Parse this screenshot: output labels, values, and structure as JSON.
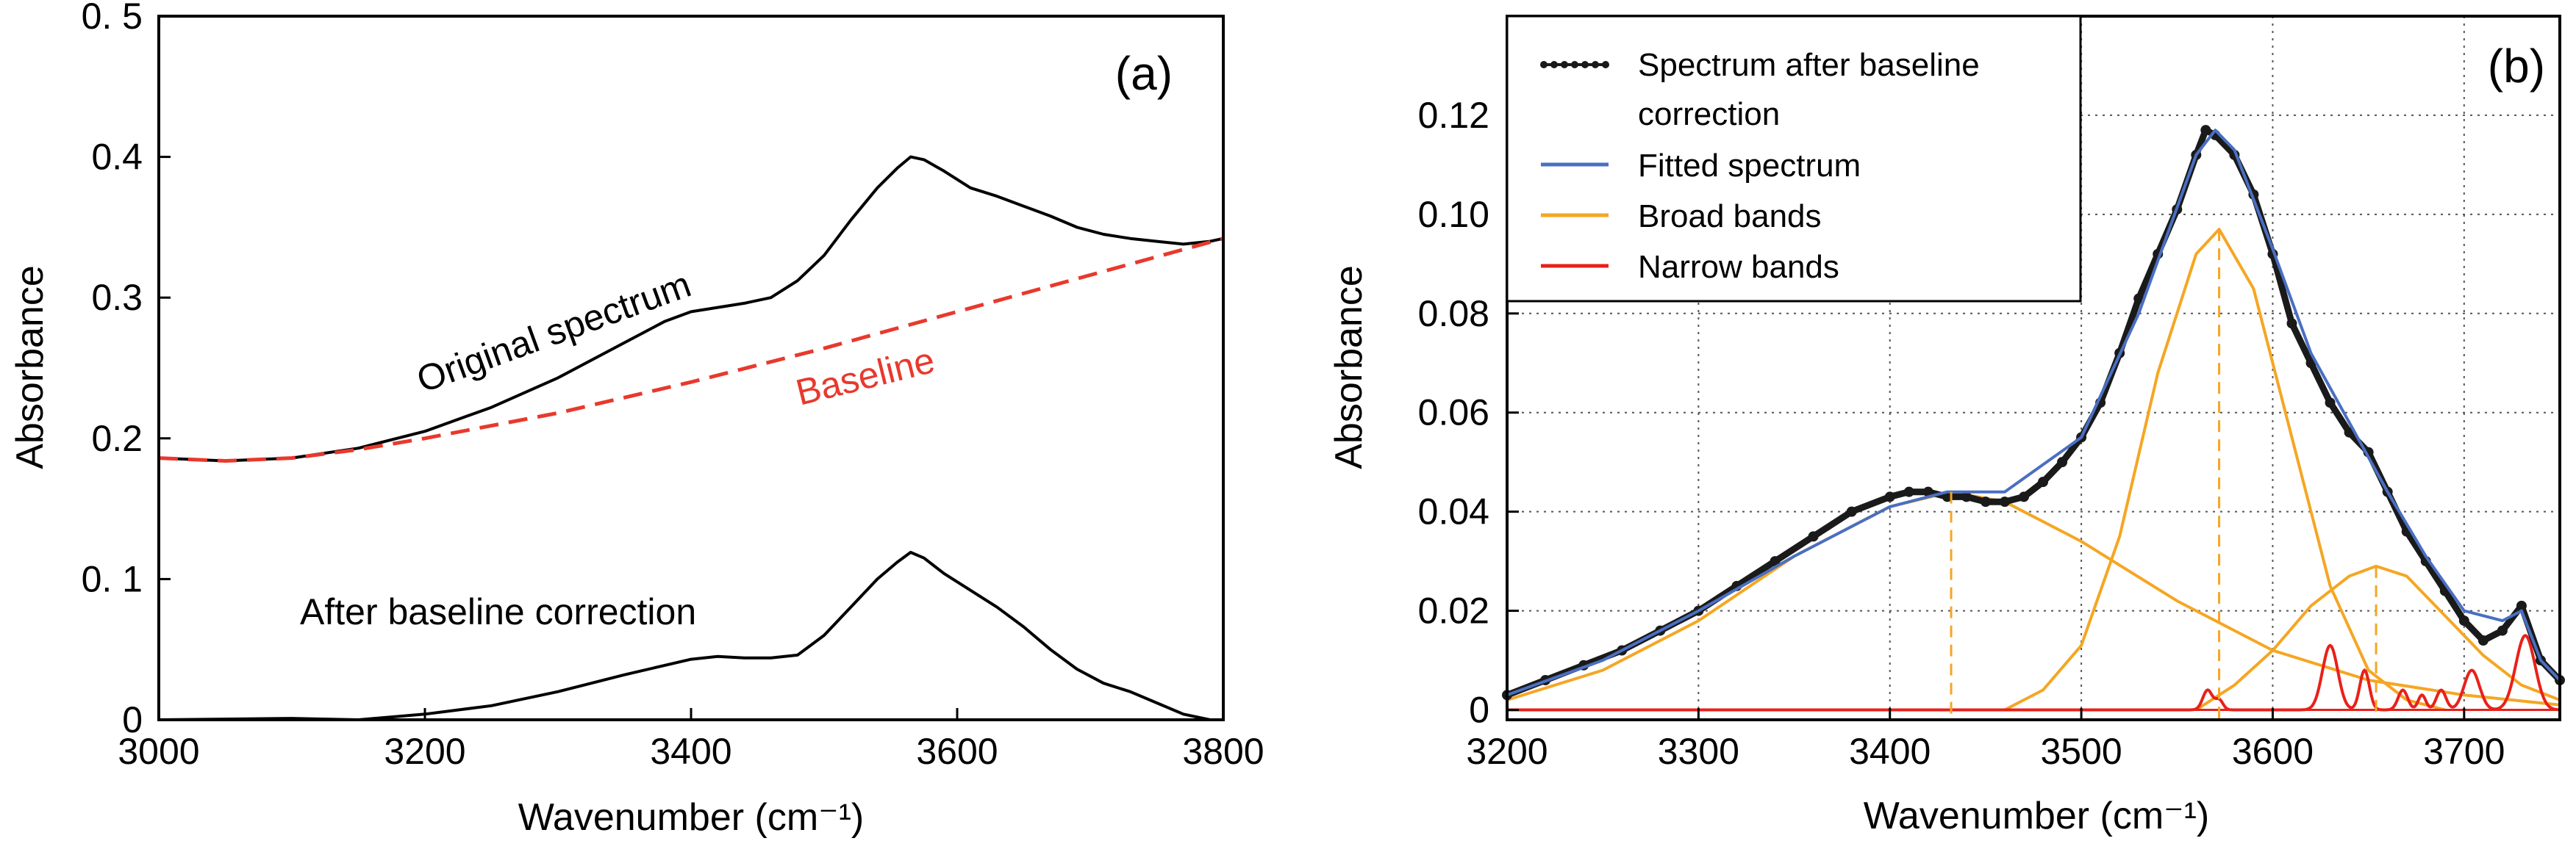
{
  "chart_data": [
    {
      "panel": "(a)",
      "type": "line",
      "xlabel": "Wavenumber (cm⁻¹)",
      "ylabel": "Absorbance",
      "xlim": [
        3000,
        3800
      ],
      "ylim": [
        0,
        0.5
      ],
      "xticks": [
        3000,
        3200,
        3400,
        3600,
        3800
      ],
      "xtick_labels": [
        "3000",
        "3200",
        "3400",
        "3600",
        "3800"
      ],
      "yticks": [
        0,
        0.1,
        0.2,
        0.3,
        0.4,
        0.5
      ],
      "ytick_labels": [
        "0",
        "0. 1",
        "0.2",
        "0.3",
        "0.4",
        "0. 5"
      ],
      "grid": false,
      "annotations": [
        {
          "text": "Original spectrum",
          "color": "#000000"
        },
        {
          "text": "Baseline",
          "color": "#e8392d"
        },
        {
          "text": "After baseline correction",
          "color": "#000000"
        }
      ],
      "series": [
        {
          "name": "Original spectrum",
          "color": "#000000",
          "style": "solid",
          "x": [
            3000,
            3050,
            3100,
            3150,
            3200,
            3250,
            3300,
            3350,
            3380,
            3400,
            3420,
            3440,
            3460,
            3480,
            3500,
            3520,
            3540,
            3555,
            3565,
            3575,
            3590,
            3610,
            3630,
            3650,
            3670,
            3690,
            3710,
            3730,
            3750,
            3770,
            3790,
            3800
          ],
          "y": [
            0.186,
            0.184,
            0.186,
            0.193,
            0.205,
            0.222,
            0.243,
            0.268,
            0.283,
            0.29,
            0.293,
            0.296,
            0.3,
            0.312,
            0.33,
            0.355,
            0.378,
            0.392,
            0.4,
            0.398,
            0.39,
            0.378,
            0.372,
            0.365,
            0.358,
            0.35,
            0.345,
            0.342,
            0.34,
            0.338,
            0.34,
            0.342
          ]
        },
        {
          "name": "Baseline",
          "color": "#e8392d",
          "style": "dashed",
          "x": [
            3000,
            3050,
            3100,
            3150,
            3200,
            3300,
            3400,
            3500,
            3600,
            3700,
            3800
          ],
          "y": [
            0.186,
            0.184,
            0.186,
            0.192,
            0.2,
            0.218,
            0.24,
            0.264,
            0.29,
            0.316,
            0.342
          ]
        },
        {
          "name": "After baseline correction",
          "color": "#000000",
          "style": "solid",
          "x": [
            3000,
            3100,
            3150,
            3200,
            3250,
            3300,
            3350,
            3400,
            3420,
            3440,
            3460,
            3480,
            3500,
            3520,
            3540,
            3555,
            3565,
            3575,
            3590,
            3610,
            3630,
            3650,
            3670,
            3690,
            3710,
            3730,
            3750,
            3770,
            3790,
            3800
          ],
          "y": [
            0.0,
            0.001,
            0.0,
            0.004,
            0.01,
            0.02,
            0.032,
            0.043,
            0.045,
            0.044,
            0.044,
            0.046,
            0.06,
            0.08,
            0.1,
            0.112,
            0.119,
            0.115,
            0.104,
            0.092,
            0.08,
            0.066,
            0.05,
            0.036,
            0.026,
            0.02,
            0.012,
            0.004,
            0.0,
            0.0
          ]
        }
      ]
    },
    {
      "panel": "(b)",
      "type": "line",
      "xlabel": "Wavenumber (cm⁻¹)",
      "ylabel": "Absorbance",
      "xlim": [
        3200,
        3750
      ],
      "ylim": [
        -0.002,
        0.14
      ],
      "xticks": [
        3200,
        3300,
        3400,
        3500,
        3600,
        3700
      ],
      "xtick_labels": [
        "3200",
        "3300",
        "3400",
        "3500",
        "3600",
        "3700"
      ],
      "yticks": [
        0,
        0.02,
        0.04,
        0.06,
        0.08,
        0.1,
        0.12
      ],
      "ytick_labels": [
        "0",
        "0.02",
        "0.04",
        "0.06",
        "0.08",
        "0.10",
        "0.12"
      ],
      "grid": true,
      "legend": {
        "position": "top-left",
        "entries": [
          {
            "label_line1": "Spectrum after baseline",
            "label_line2": "correction",
            "color": "#1a1a1a",
            "marker": "dots"
          },
          {
            "label_line1": "Fitted spectrum",
            "label_line2": "",
            "color": "#4a6fc2",
            "marker": "line"
          },
          {
            "label_line1": "Broad bands",
            "label_line2": "",
            "color": "#f5a623",
            "marker": "line"
          },
          {
            "label_line1": "Narrow bands",
            "label_line2": "",
            "color": "#e8211a",
            "marker": "line"
          }
        ]
      },
      "series": [
        {
          "name": "Spectrum after baseline correction",
          "color": "#1a1a1a",
          "style": "dots",
          "x": [
            3200,
            3220,
            3240,
            3260,
            3280,
            3300,
            3320,
            3340,
            3360,
            3380,
            3400,
            3410,
            3420,
            3430,
            3440,
            3450,
            3460,
            3470,
            3480,
            3490,
            3500,
            3510,
            3520,
            3530,
            3540,
            3550,
            3560,
            3565,
            3570,
            3580,
            3590,
            3600,
            3610,
            3620,
            3630,
            3640,
            3650,
            3660,
            3670,
            3680,
            3690,
            3700,
            3710,
            3720,
            3730,
            3740,
            3750
          ],
          "y": [
            0.003,
            0.006,
            0.009,
            0.012,
            0.016,
            0.02,
            0.025,
            0.03,
            0.035,
            0.04,
            0.043,
            0.044,
            0.044,
            0.043,
            0.043,
            0.042,
            0.042,
            0.043,
            0.046,
            0.05,
            0.055,
            0.062,
            0.072,
            0.083,
            0.092,
            0.101,
            0.112,
            0.117,
            0.116,
            0.112,
            0.104,
            0.092,
            0.078,
            0.07,
            0.062,
            0.056,
            0.052,
            0.044,
            0.036,
            0.03,
            0.024,
            0.018,
            0.014,
            0.016,
            0.021,
            0.01,
            0.006
          ]
        },
        {
          "name": "Fitted spectrum",
          "color": "#4a6fc2",
          "style": "solid",
          "x": [
            3200,
            3250,
            3300,
            3350,
            3400,
            3430,
            3460,
            3500,
            3530,
            3560,
            3570,
            3580,
            3600,
            3620,
            3640,
            3660,
            3680,
            3700,
            3720,
            3730,
            3740,
            3750
          ],
          "y": [
            0.003,
            0.01,
            0.02,
            0.031,
            0.041,
            0.044,
            0.044,
            0.055,
            0.08,
            0.112,
            0.117,
            0.113,
            0.093,
            0.072,
            0.058,
            0.044,
            0.031,
            0.02,
            0.018,
            0.02,
            0.01,
            0.006
          ]
        },
        {
          "name": "Broad band 1",
          "color": "#f5a623",
          "style": "solid",
          "x": [
            3200,
            3250,
            3300,
            3350,
            3400,
            3432,
            3460,
            3500,
            3550,
            3600,
            3650,
            3700,
            3750
          ],
          "y": [
            0.002,
            0.008,
            0.018,
            0.031,
            0.041,
            0.044,
            0.042,
            0.034,
            0.022,
            0.012,
            0.006,
            0.003,
            0.001
          ]
        },
        {
          "name": "Broad band 2",
          "color": "#f5a623",
          "style": "solid",
          "x": [
            3460,
            3480,
            3500,
            3520,
            3540,
            3560,
            3572,
            3590,
            3610,
            3630,
            3650,
            3670,
            3690
          ],
          "y": [
            0.0,
            0.004,
            0.013,
            0.035,
            0.068,
            0.092,
            0.097,
            0.085,
            0.055,
            0.025,
            0.008,
            0.002,
            0.0
          ]
        },
        {
          "name": "Broad band 3",
          "color": "#f5a623",
          "style": "solid",
          "x": [
            3560,
            3580,
            3600,
            3620,
            3640,
            3654,
            3670,
            3690,
            3710,
            3730,
            3750
          ],
          "y": [
            0.0,
            0.005,
            0.012,
            0.021,
            0.027,
            0.029,
            0.027,
            0.019,
            0.011,
            0.005,
            0.002
          ]
        },
        {
          "name": "Narrow bands",
          "color": "#e8211a",
          "style": "peaks",
          "centers": [
            3566,
            3572,
            3630,
            3648,
            3668,
            3678,
            3688,
            3704,
            3732
          ],
          "heights": [
            0.004,
            0.002,
            0.013,
            0.008,
            0.004,
            0.003,
            0.004,
            0.008,
            0.015
          ],
          "widths": [
            2.5,
            2.0,
            4.0,
            2.5,
            2.5,
            2.0,
            2.5,
            4.0,
            5.0
          ]
        }
      ],
      "dashed_markers": [
        {
          "x": 3432,
          "y": 0.044,
          "color": "#f5a623"
        },
        {
          "x": 3572,
          "y": 0.097,
          "color": "#f5a623"
        },
        {
          "x": 3654,
          "y": 0.029,
          "color": "#f5a623"
        }
      ]
    }
  ]
}
